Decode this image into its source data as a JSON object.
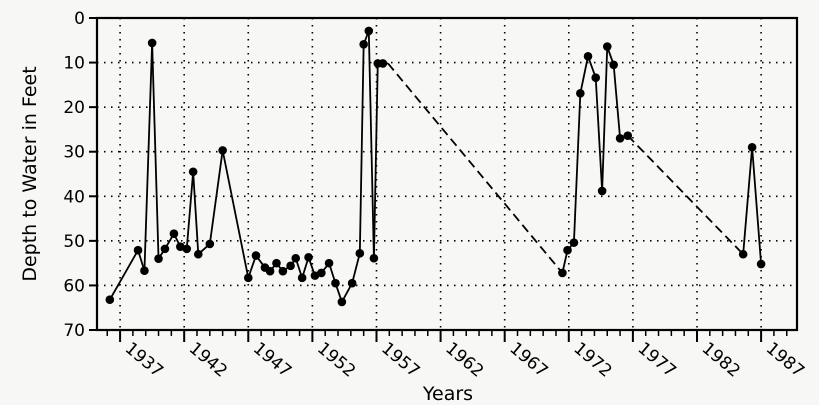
{
  "chart_data": {
    "type": "line",
    "title": "",
    "xlabel": "Years",
    "ylabel": "Depth to Water in Feet",
    "xlim": [
      1935.2,
      1989.8
    ],
    "ylim": [
      0,
      70
    ],
    "y_inverted": true,
    "grid": true,
    "x_ticks": [
      1937,
      1942,
      1947,
      1952,
      1957,
      1962,
      1967,
      1972,
      1977,
      1982,
      1987
    ],
    "y_ticks": [
      0,
      10,
      20,
      30,
      40,
      50,
      60,
      70
    ],
    "line_color": "#000000",
    "series": [
      {
        "x": [
          1936.2,
          1938.4,
          1938.9,
          1939.5,
          1940.0,
          1940.5,
          1941.2,
          1941.7,
          1942.2,
          1942.7,
          1943.1,
          1944.0,
          1945.0,
          1947.0,
          1947.6,
          1948.3,
          1948.7,
          1949.2,
          1949.7,
          1950.3,
          1950.7,
          1951.2,
          1951.7,
          1952.2,
          1952.7,
          1953.3,
          1953.8,
          1954.3,
          1955.1,
          1955.7,
          1956.0,
          1956.4,
          1956.8,
          1957.1,
          1957.5,
          1957.9
        ],
        "y": [
          63.2,
          52.1,
          56.7,
          5.6,
          54.0,
          51.8,
          48.4,
          51.3,
          51.8,
          34.5,
          53.0,
          50.7,
          29.7,
          58.3,
          53.3,
          56.0,
          56.8,
          55.0,
          56.8,
          55.6,
          53.9,
          58.3,
          53.7,
          57.8,
          57.2,
          55.0,
          59.5,
          63.7,
          59.5,
          52.8,
          5.9,
          2.9,
          53.9,
          10.2,
          10.2,
          10.2
        ],
        "dashed_after_index": 34
      },
      {
        "x": [
          1957.9,
          1971.5,
          1971.9,
          1972.4,
          1972.9,
          1973.5,
          1974.1,
          1974.6,
          1975.0,
          1975.5,
          1976.0
        ],
        "y": [
          10.2,
          57.2,
          52.1,
          50.4,
          16.9,
          8.6,
          13.4,
          38.8,
          6.4,
          10.5,
          27.0
        ],
        "dashed_before_index": 1
      },
      {
        "x": [
          1976.0,
          1976.6,
          1985.6,
          1986.3,
          1987.0
        ],
        "y": [
          27.0,
          26.4,
          53.0,
          29.0,
          55.2
        ],
        "dashed_segments": [
          [
            1,
            2
          ]
        ]
      }
    ]
  }
}
